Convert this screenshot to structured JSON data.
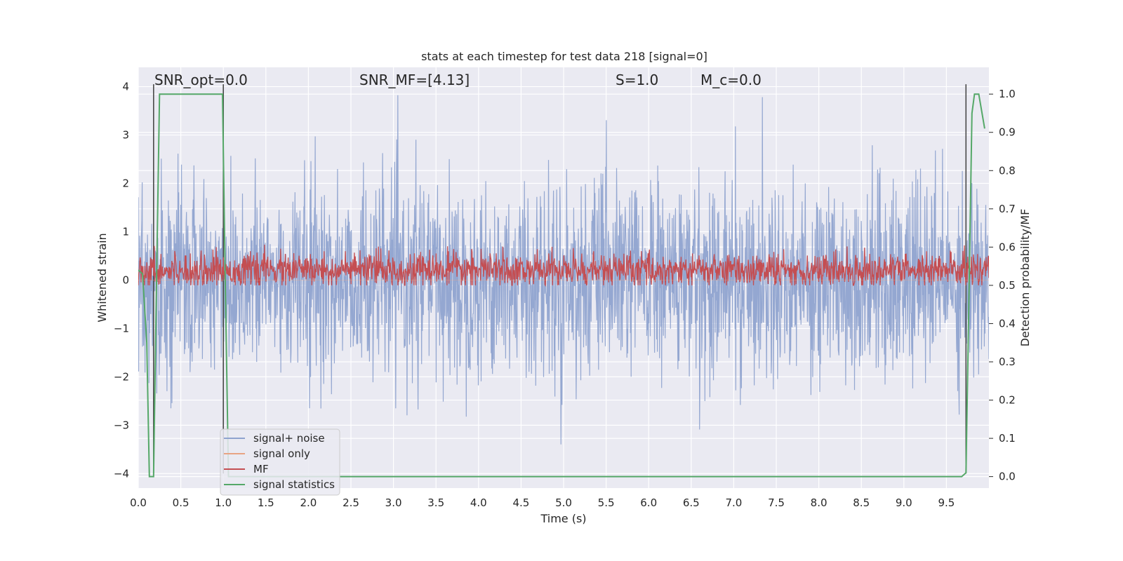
{
  "chart_data": {
    "type": "line",
    "title": "stats at each timestep for test data 218 [signal=0]",
    "xlabel": "Time (s)",
    "ylabel": "Whitened strain",
    "ylabel_right": "Detection probability/MF",
    "xlim": [
      0.0,
      10.0
    ],
    "ylim": [
      -4.3,
      4.4
    ],
    "ylim_right": [
      -0.03,
      1.07
    ],
    "xticks": [
      0.0,
      0.5,
      1.0,
      1.5,
      2.0,
      2.5,
      3.0,
      3.5,
      4.0,
      4.5,
      5.0,
      5.5,
      6.0,
      6.5,
      7.0,
      7.5,
      8.0,
      8.5,
      9.0,
      9.5
    ],
    "xtick_labels": [
      "0.0",
      "0.5",
      "1.0",
      "1.5",
      "2.0",
      "2.5",
      "3.0",
      "3.5",
      "4.0",
      "4.5",
      "5.0",
      "5.5",
      "6.0",
      "6.5",
      "7.0",
      "7.5",
      "8.0",
      "8.5",
      "9.0",
      "9.5"
    ],
    "yticks": [
      4,
      3,
      2,
      1,
      0,
      -1,
      -2,
      -3,
      -4
    ],
    "ytick_labels": [
      "4",
      "3",
      "2",
      "1",
      "0",
      "−1",
      "−2",
      "−3",
      "−4"
    ],
    "yticks_right": [
      1.0,
      0.9,
      0.8,
      0.7,
      0.6,
      0.5,
      0.4,
      0.3,
      0.2,
      0.1,
      0.0
    ],
    "ytick_labels_right": [
      "1.0",
      "0.9",
      "0.8",
      "0.7",
      "0.6",
      "0.5",
      "0.4",
      "0.3",
      "0.2",
      "0.1",
      "0.0"
    ],
    "grid": true,
    "legend_position": "lower-left",
    "annotations": [
      {
        "label": "SNR_opt=0.0",
        "x": 0.19
      },
      {
        "label": "SNR_MF=[4.13]",
        "x": 2.6
      },
      {
        "label": "S=1.0",
        "x": 5.6
      },
      {
        "label": "M_c=0.0",
        "x": 6.6
      }
    ],
    "vlines": [
      0.18,
      1.0,
      9.73
    ],
    "series": [
      {
        "name": "signal+ noise",
        "color": "#8fa3cf",
        "axis": "left",
        "amplitude_range": [
          -3.9,
          4.1
        ],
        "typical_band": [
          -2.0,
          2.0
        ]
      },
      {
        "name": "signal only",
        "color": "#e8a383",
        "axis": "left",
        "values_constant": 0.0
      },
      {
        "name": "MF",
        "color": "#c44e52",
        "axis": "right",
        "range": [
          0.5,
          0.62
        ]
      },
      {
        "name": "signal statistics",
        "color": "#55a868",
        "axis": "right",
        "points": [
          [
            0.0,
            0.54
          ],
          [
            0.05,
            0.53
          ],
          [
            0.1,
            0.35
          ],
          [
            0.13,
            0.0
          ],
          [
            0.18,
            0.0
          ],
          [
            0.21,
            0.45
          ],
          [
            0.25,
            1.0
          ],
          [
            0.4,
            1.0
          ],
          [
            0.7,
            1.0
          ],
          [
            0.99,
            1.0
          ],
          [
            1.02,
            0.55
          ],
          [
            1.06,
            0.0
          ],
          [
            2.0,
            0.0
          ],
          [
            5.0,
            0.0
          ],
          [
            8.0,
            0.0
          ],
          [
            9.68,
            0.0
          ],
          [
            9.73,
            0.01
          ],
          [
            9.76,
            0.4
          ],
          [
            9.8,
            0.95
          ],
          [
            9.83,
            1.0
          ],
          [
            9.88,
            1.0
          ],
          [
            9.95,
            0.91
          ]
        ]
      }
    ]
  }
}
